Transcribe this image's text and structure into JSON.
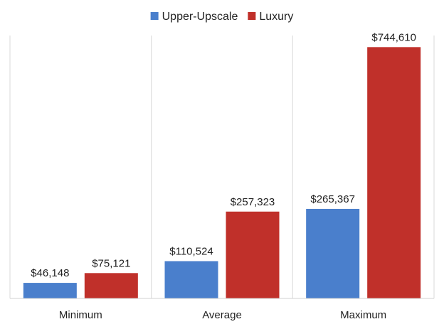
{
  "chart_data": {
    "type": "bar",
    "categories": [
      "Minimum",
      "Average",
      "Maximum"
    ],
    "series": [
      {
        "name": "Upper-Upscale",
        "color": "#4a7fcc",
        "values": [
          46148,
          110524,
          265367
        ],
        "labels": [
          "$46,148",
          "$110,524",
          "$265,367"
        ]
      },
      {
        "name": "Luxury",
        "color": "#c0302a",
        "values": [
          75121,
          257323,
          744610
        ],
        "labels": [
          "$75,121",
          "$257,323",
          "$744,610"
        ]
      }
    ],
    "title": "",
    "xlabel": "",
    "ylabel": "",
    "ylim": [
      0,
      800000
    ],
    "grid": false,
    "legend_position": "top-center"
  }
}
